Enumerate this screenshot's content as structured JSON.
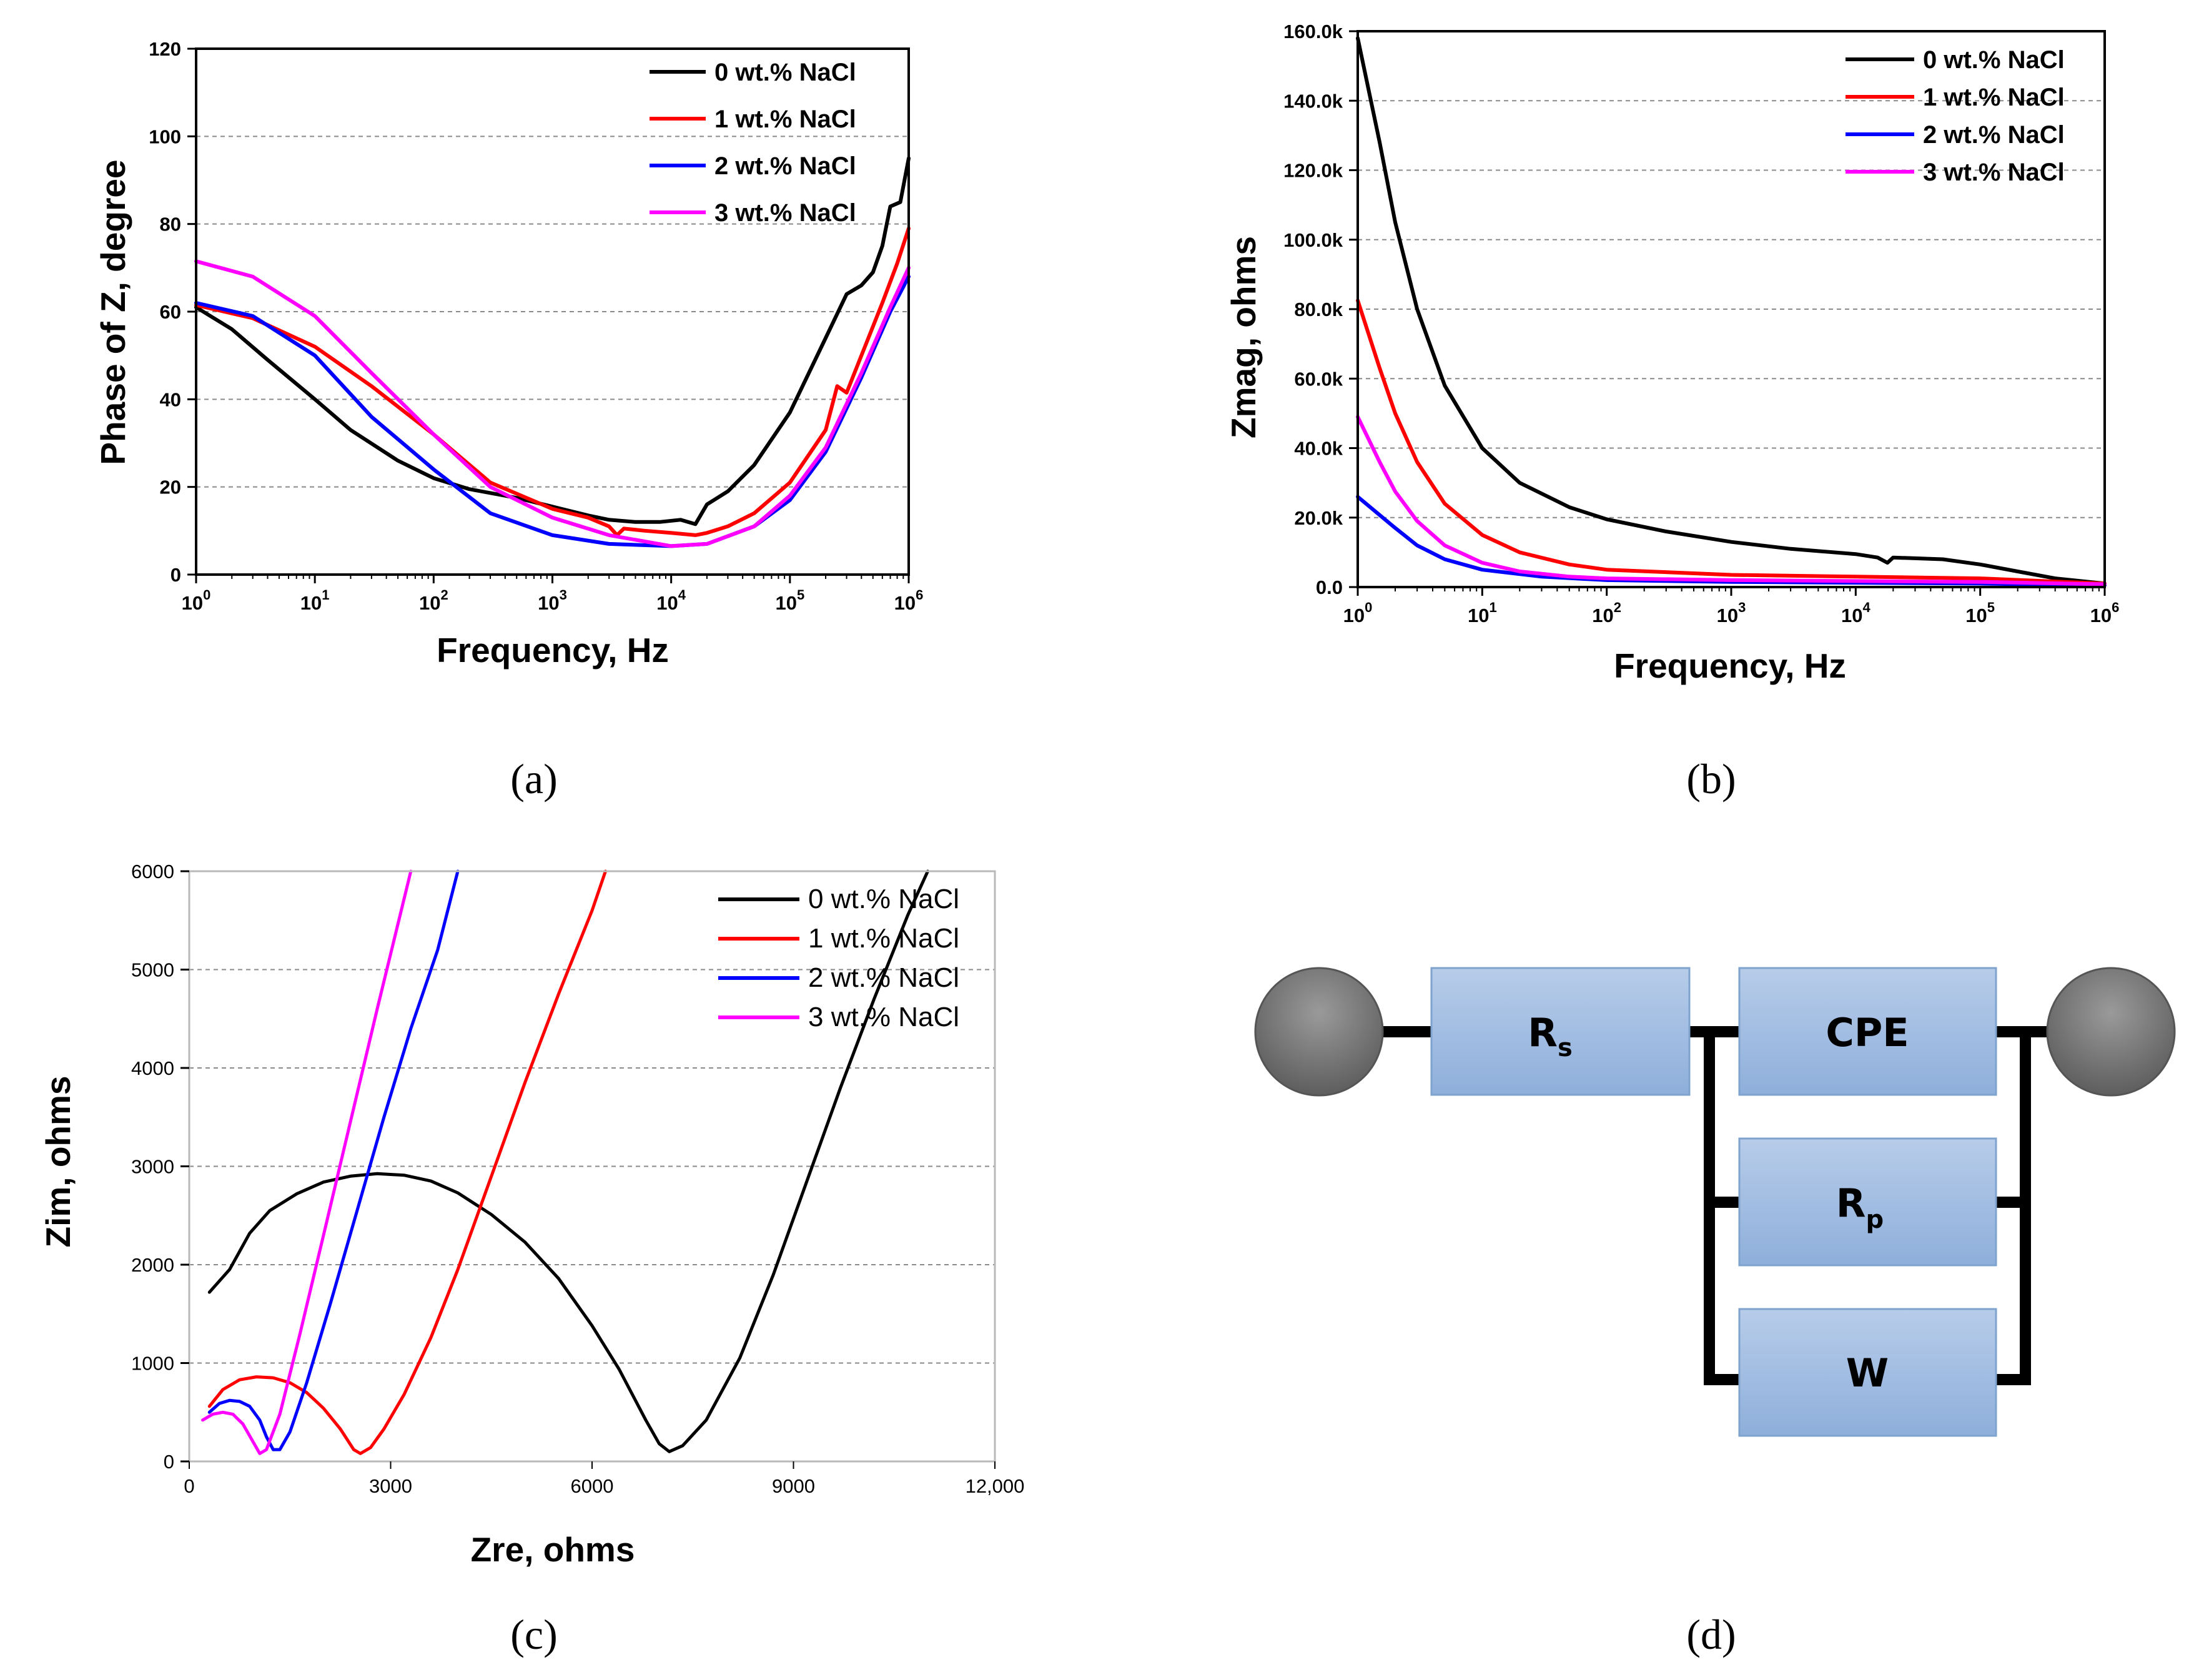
{
  "chart_data": [
    {
      "id": "a",
      "type": "line",
      "caption": "(a)",
      "xlabel": "Frequency, Hz",
      "ylabel": "Phase of Z, degree",
      "xscale": "log",
      "xlim": [
        1,
        1000000
      ],
      "ylim": [
        0,
        120
      ],
      "yticks": [
        "0",
        "20",
        "40",
        "60",
        "80",
        "100",
        "120"
      ],
      "xtick_exponents": [
        "0",
        "1",
        "2",
        "3",
        "4",
        "5",
        "6"
      ],
      "grid": "horizontal-dashed",
      "legend_position": "top-right",
      "series": [
        {
          "name": "0 wt.% NaCl",
          "color": "#000000",
          "points": [
            [
              1,
              61
            ],
            [
              2,
              56
            ],
            [
              4,
              49
            ],
            [
              10,
              40
            ],
            [
              20,
              33
            ],
            [
              50,
              26
            ],
            [
              100,
              22
            ],
            [
              200,
              19.5
            ],
            [
              500,
              17.5
            ],
            [
              1000,
              15.5
            ],
            [
              2000,
              13.5
            ],
            [
              3000,
              12.5
            ],
            [
              5000,
              12
            ],
            [
              8000,
              12
            ],
            [
              12000,
              12.5
            ],
            [
              16000,
              11.5
            ],
            [
              20000,
              16
            ],
            [
              30000,
              19
            ],
            [
              50000,
              25
            ],
            [
              100000,
              37
            ],
            [
              200000,
              54
            ],
            [
              300000,
              64
            ],
            [
              400000,
              66
            ],
            [
              500000,
              69
            ],
            [
              600000,
              75
            ],
            [
              700000,
              84
            ],
            [
              850000,
              85
            ],
            [
              1000000,
              95
            ]
          ]
        },
        {
          "name": "1 wt.% NaCl",
          "color": "#ff0000",
          "points": [
            [
              1,
              61.5
            ],
            [
              3,
              58.5
            ],
            [
              10,
              52
            ],
            [
              30,
              43
            ],
            [
              100,
              32
            ],
            [
              300,
              21
            ],
            [
              1000,
              15
            ],
            [
              2000,
              13
            ],
            [
              3000,
              11
            ],
            [
              3500,
              9
            ],
            [
              4000,
              10.5
            ],
            [
              6000,
              10
            ],
            [
              10000,
              9.5
            ],
            [
              16000,
              9
            ],
            [
              20000,
              9.5
            ],
            [
              30000,
              11
            ],
            [
              50000,
              14
            ],
            [
              100000,
              21
            ],
            [
              200000,
              33
            ],
            [
              250000,
              43
            ],
            [
              300000,
              41.5
            ],
            [
              400000,
              50
            ],
            [
              600000,
              62
            ],
            [
              800000,
              71
            ],
            [
              1000000,
              79
            ]
          ]
        },
        {
          "name": "2 wt.% NaCl",
          "color": "#0000ff",
          "points": [
            [
              1,
              62
            ],
            [
              3,
              59
            ],
            [
              10,
              50
            ],
            [
              30,
              36
            ],
            [
              100,
              24
            ],
            [
              300,
              14
            ],
            [
              1000,
              9
            ],
            [
              3000,
              7
            ],
            [
              10000,
              6.5
            ],
            [
              20000,
              7
            ],
            [
              50000,
              11
            ],
            [
              100000,
              17
            ],
            [
              200000,
              28
            ],
            [
              400000,
              45
            ],
            [
              700000,
              60
            ],
            [
              1000000,
              68
            ]
          ]
        },
        {
          "name": "3 wt.% NaCl",
          "color": "#ff00ff",
          "points": [
            [
              1,
              71.5
            ],
            [
              3,
              68
            ],
            [
              10,
              59
            ],
            [
              30,
              46
            ],
            [
              100,
              32
            ],
            [
              300,
              20
            ],
            [
              1000,
              13
            ],
            [
              3000,
              9
            ],
            [
              10000,
              6.5
            ],
            [
              20000,
              7
            ],
            [
              50000,
              11
            ],
            [
              100000,
              18
            ],
            [
              200000,
              29
            ],
            [
              400000,
              46
            ],
            [
              700000,
              61
            ],
            [
              1000000,
              70
            ]
          ]
        }
      ]
    },
    {
      "id": "b",
      "type": "line",
      "caption": "(b)",
      "xlabel": "Frequency, Hz",
      "ylabel": "Zmag, ohms",
      "xscale": "log",
      "xlim": [
        1,
        1000000
      ],
      "ylim": [
        0,
        160000
      ],
      "yticks": [
        "0.0",
        "20.0k",
        "40.0k",
        "60.0k",
        "80.0k",
        "100.0k",
        "120.0k",
        "140.0k",
        "160.0k"
      ],
      "xtick_exponents": [
        "0",
        "1",
        "2",
        "3",
        "4",
        "5",
        "6"
      ],
      "grid": "horizontal-dashed",
      "legend_position": "top-right",
      "series": [
        {
          "name": "0 wt.% NaCl",
          "color": "#000000",
          "points": [
            [
              1,
              158000
            ],
            [
              1.5,
              128000
            ],
            [
              2,
              105000
            ],
            [
              3,
              80000
            ],
            [
              5,
              58000
            ],
            [
              10,
              40000
            ],
            [
              20,
              30000
            ],
            [
              50,
              23000
            ],
            [
              100,
              19500
            ],
            [
              300,
              16000
            ],
            [
              1000,
              13000
            ],
            [
              3000,
              11000
            ],
            [
              10000,
              9500
            ],
            [
              15000,
              8500
            ],
            [
              18000,
              7000
            ],
            [
              20000,
              8500
            ],
            [
              50000,
              8000
            ],
            [
              100000,
              6500
            ],
            [
              200000,
              4500
            ],
            [
              400000,
              2500
            ],
            [
              1000000,
              1000
            ]
          ]
        },
        {
          "name": "1 wt.% NaCl",
          "color": "#ff0000",
          "points": [
            [
              1,
              82500
            ],
            [
              1.5,
              63000
            ],
            [
              2,
              50000
            ],
            [
              3,
              36000
            ],
            [
              5,
              24000
            ],
            [
              10,
              15000
            ],
            [
              20,
              10000
            ],
            [
              50,
              6500
            ],
            [
              100,
              5000
            ],
            [
              1000,
              3500
            ],
            [
              10000,
              3000
            ],
            [
              100000,
              2500
            ],
            [
              1000000,
              1000
            ]
          ]
        },
        {
          "name": "2 wt.% NaCl",
          "color": "#0000ff",
          "points": [
            [
              1,
              26000
            ],
            [
              2,
              17000
            ],
            [
              3,
              12000
            ],
            [
              5,
              8000
            ],
            [
              10,
              5000
            ],
            [
              30,
              3000
            ],
            [
              100,
              2000
            ],
            [
              1000,
              1500
            ],
            [
              100000,
              1000
            ],
            [
              1000000,
              500
            ]
          ]
        },
        {
          "name": "3 wt.% NaCl",
          "color": "#ff00ff",
          "points": [
            [
              1,
              49000
            ],
            [
              1.5,
              36000
            ],
            [
              2,
              27500
            ],
            [
              3,
              19000
            ],
            [
              5,
              12000
            ],
            [
              10,
              7000
            ],
            [
              20,
              4500
            ],
            [
              50,
              3000
            ],
            [
              100,
              2500
            ],
            [
              1000,
              2000
            ],
            [
              100000,
              1500
            ],
            [
              1000000,
              800
            ]
          ]
        }
      ]
    },
    {
      "id": "c",
      "type": "line",
      "caption": "(c)",
      "xlabel": "Zre, ohms",
      "ylabel": "Zim, ohms",
      "xscale": "linear",
      "xlim": [
        0,
        12000
      ],
      "ylim": [
        0,
        6000
      ],
      "xticks": [
        "0",
        "3000",
        "6000",
        "9000",
        "12,000"
      ],
      "yticks": [
        "0",
        "1000",
        "2000",
        "3000",
        "4000",
        "5000",
        "6000"
      ],
      "grid": "horizontal-dotted",
      "legend_position": "top-right",
      "series": [
        {
          "name": "0 wt.% NaCl",
          "color": "#000000",
          "points": [
            [
              300,
              1720
            ],
            [
              600,
              1950
            ],
            [
              900,
              2320
            ],
            [
              1200,
              2550
            ],
            [
              1600,
              2720
            ],
            [
              2000,
              2840
            ],
            [
              2400,
              2900
            ],
            [
              2800,
              2925
            ],
            [
              3200,
              2910
            ],
            [
              3600,
              2850
            ],
            [
              4000,
              2730
            ],
            [
              4500,
              2510
            ],
            [
              5000,
              2230
            ],
            [
              5500,
              1860
            ],
            [
              6000,
              1380
            ],
            [
              6400,
              940
            ],
            [
              6800,
              420
            ],
            [
              7000,
              180
            ],
            [
              7150,
              100
            ],
            [
              7350,
              160
            ],
            [
              7700,
              420
            ],
            [
              8200,
              1050
            ],
            [
              8700,
              1900
            ],
            [
              9200,
              2850
            ],
            [
              9700,
              3800
            ],
            [
              10200,
              4700
            ],
            [
              10700,
              5550
            ],
            [
              11000,
              6000
            ]
          ]
        },
        {
          "name": "1 wt.% NaCl",
          "color": "#ff0000",
          "points": [
            [
              300,
              560
            ],
            [
              500,
              730
            ],
            [
              750,
              830
            ],
            [
              1000,
              860
            ],
            [
              1250,
              850
            ],
            [
              1500,
              800
            ],
            [
              1750,
              700
            ],
            [
              2000,
              540
            ],
            [
              2250,
              330
            ],
            [
              2450,
              120
            ],
            [
              2550,
              80
            ],
            [
              2700,
              140
            ],
            [
              2900,
              330
            ],
            [
              3200,
              680
            ],
            [
              3600,
              1260
            ],
            [
              4000,
              1950
            ],
            [
              4500,
              2900
            ],
            [
              5000,
              3850
            ],
            [
              5500,
              4750
            ],
            [
              6000,
              5600
            ],
            [
              6200,
              6000
            ]
          ]
        },
        {
          "name": "2 wt.% NaCl",
          "color": "#0000ff",
          "points": [
            [
              300,
              500
            ],
            [
              450,
              590
            ],
            [
              600,
              620
            ],
            [
              750,
              610
            ],
            [
              900,
              560
            ],
            [
              1050,
              420
            ],
            [
              1150,
              250
            ],
            [
              1250,
              120
            ],
            [
              1350,
              120
            ],
            [
              1500,
              300
            ],
            [
              1750,
              800
            ],
            [
              2100,
              1600
            ],
            [
              2500,
              2550
            ],
            [
              2900,
              3500
            ],
            [
              3300,
              4400
            ],
            [
              3700,
              5200
            ],
            [
              4000,
              6000
            ]
          ]
        },
        {
          "name": "3 wt.% NaCl",
          "color": "#ff00ff",
          "points": [
            [
              200,
              420
            ],
            [
              350,
              480
            ],
            [
              500,
              500
            ],
            [
              650,
              480
            ],
            [
              800,
              380
            ],
            [
              950,
              200
            ],
            [
              1050,
              80
            ],
            [
              1150,
              120
            ],
            [
              1350,
              480
            ],
            [
              1650,
              1300
            ],
            [
              2000,
              2300
            ],
            [
              2400,
              3450
            ],
            [
              2800,
              4600
            ],
            [
              3300,
              6000
            ]
          ]
        }
      ]
    }
  ],
  "circuit": {
    "caption": "(d)",
    "components": {
      "rs": {
        "main": "R",
        "sub": "s"
      },
      "cpe": {
        "main": "CPE"
      },
      "rp": {
        "main": "R",
        "sub": "p"
      },
      "w": {
        "main": "W"
      }
    }
  }
}
